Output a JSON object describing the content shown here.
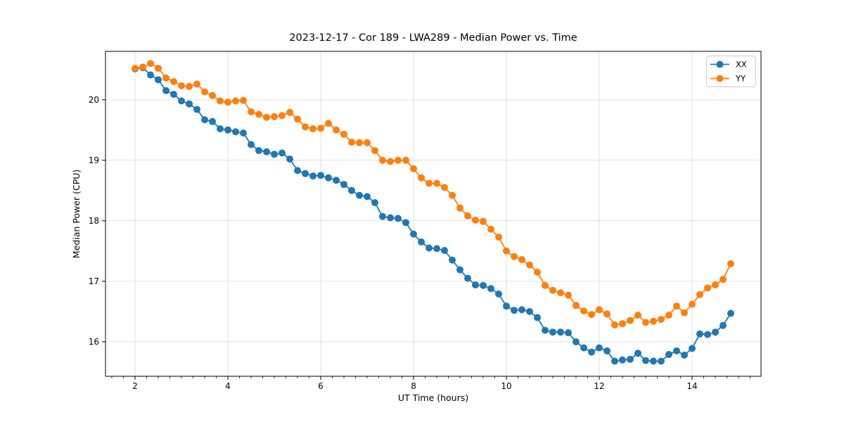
{
  "figure": {
    "title": "2023-12-17 - Cor 189 - LWA289 - Median Power vs. Time",
    "xlabel": "UT Time (hours)",
    "ylabel": "Median Power (CPU)"
  },
  "legend": {
    "items": [
      {
        "label": "XX",
        "color": "#1f77b4"
      },
      {
        "label": "YY",
        "color": "#ff7f0e"
      }
    ]
  },
  "colors": {
    "background": "#ffffff",
    "spine": "#000000",
    "grid": "#e0e0e0",
    "series_xx": "#1f77b4",
    "series_yy": "#ff7f0e"
  },
  "chart_data": {
    "type": "line",
    "title": "2023-12-17 - Cor 189 - LWA289 - Median Power vs. Time",
    "xlabel": "UT Time (hours)",
    "ylabel": "Median Power (CPU)",
    "xlim": [
      1.364,
      15.485
    ],
    "ylim": [
      15.43,
      20.8
    ],
    "x_major_ticks": [
      2,
      4,
      6,
      8,
      10,
      12,
      14
    ],
    "x_minor_tick_step": 0.25,
    "y_major_ticks": [
      16,
      17,
      18,
      19,
      20
    ],
    "grid": true,
    "legend_position": "upper right",
    "marker": "circle",
    "x": [
      2.0,
      2.167,
      2.333,
      2.5,
      2.667,
      2.833,
      3.0,
      3.167,
      3.333,
      3.5,
      3.667,
      3.833,
      4.0,
      4.167,
      4.333,
      4.5,
      4.667,
      4.833,
      5.0,
      5.167,
      5.333,
      5.5,
      5.667,
      5.833,
      6.0,
      6.167,
      6.333,
      6.5,
      6.667,
      6.833,
      7.0,
      7.167,
      7.333,
      7.5,
      7.667,
      7.833,
      8.0,
      8.167,
      8.333,
      8.5,
      8.667,
      8.833,
      9.0,
      9.167,
      9.333,
      9.5,
      9.667,
      9.833,
      10.0,
      10.167,
      10.333,
      10.5,
      10.667,
      10.833,
      11.0,
      11.167,
      11.333,
      11.5,
      11.667,
      11.833,
      12.0,
      12.167,
      12.333,
      12.5,
      12.667,
      12.833,
      13.0,
      13.167,
      13.333,
      13.5,
      13.667,
      13.833,
      14.0,
      14.167,
      14.333,
      14.5,
      14.667,
      14.833
    ],
    "series": [
      {
        "name": "XX",
        "color": "#1f77b4",
        "values": [
          20.51,
          20.53,
          20.41,
          20.33,
          20.15,
          20.09,
          19.98,
          19.93,
          19.84,
          19.67,
          19.64,
          19.52,
          19.5,
          19.47,
          19.45,
          19.26,
          19.16,
          19.14,
          19.1,
          19.12,
          19.02,
          18.83,
          18.78,
          18.74,
          18.75,
          18.71,
          18.67,
          18.6,
          18.5,
          18.42,
          18.4,
          18.3,
          18.07,
          18.05,
          18.04,
          17.97,
          17.78,
          17.65,
          17.55,
          17.54,
          17.51,
          17.35,
          17.19,
          17.05,
          16.94,
          16.93,
          16.88,
          16.79,
          16.59,
          16.52,
          16.53,
          16.5,
          16.4,
          16.19,
          16.16,
          16.16,
          16.15,
          16.0,
          15.9,
          15.83,
          15.9,
          15.85,
          15.68,
          15.7,
          15.71,
          15.81,
          15.69,
          15.68,
          15.68,
          15.79,
          15.85,
          15.78,
          15.89,
          16.13,
          16.12,
          16.16,
          16.27,
          16.47
        ]
      },
      {
        "name": "YY",
        "color": "#ff7f0e",
        "values": [
          20.52,
          20.54,
          20.6,
          20.52,
          20.36,
          20.3,
          20.23,
          20.22,
          20.26,
          20.13,
          20.07,
          19.98,
          19.96,
          19.98,
          19.99,
          19.8,
          19.76,
          19.71,
          19.72,
          19.74,
          19.79,
          19.68,
          19.55,
          19.52,
          19.53,
          19.61,
          19.5,
          19.43,
          19.3,
          19.29,
          19.29,
          19.16,
          19.0,
          18.98,
          19.0,
          19.0,
          18.86,
          18.71,
          18.62,
          18.62,
          18.55,
          18.42,
          18.21,
          18.08,
          18.01,
          17.99,
          17.86,
          17.73,
          17.5,
          17.41,
          17.36,
          17.27,
          17.15,
          16.93,
          16.85,
          16.81,
          16.77,
          16.6,
          16.51,
          16.45,
          16.53,
          16.46,
          16.28,
          16.3,
          16.35,
          16.44,
          16.32,
          16.34,
          16.37,
          16.44,
          16.59,
          16.48,
          16.62,
          16.78,
          16.89,
          16.94,
          17.03,
          17.29
        ]
      }
    ]
  }
}
